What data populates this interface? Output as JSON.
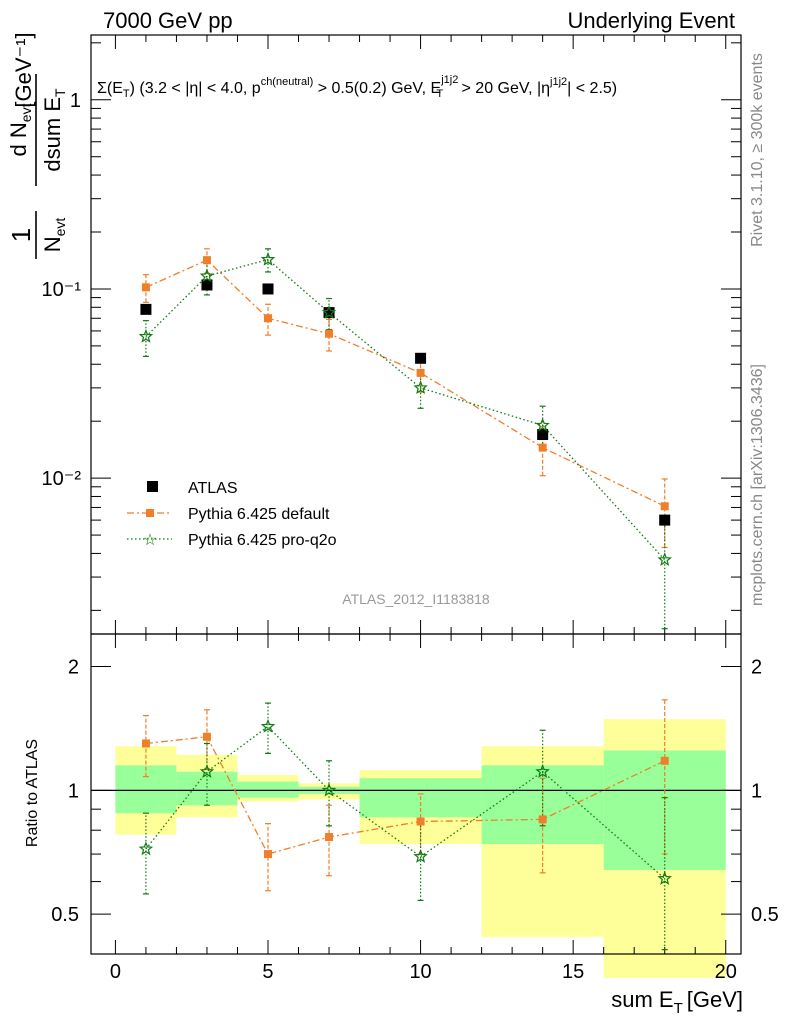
{
  "header": {
    "left": "7000 GeV pp",
    "right": "Underlying Event"
  },
  "side": {
    "rivet": "Rivet 3.1.10, ≥ 300k events",
    "mcplots": "mcplots.cern.ch [arXiv:1306.3436]"
  },
  "watermark": "ATLAS_2012_I1183818",
  "ylabel_unit": "[GeV⁻¹]",
  "ratio_ylabel": "Ratio to ATLAS",
  "xlabel": "sum E",
  "xlabel_sub": "T",
  "xlabel_unit": "[GeV]",
  "annotation": {
    "p1": "Σ(E",
    "p2": "T",
    "p3": ") (3.2 < |η| < 4.0, p",
    "p4": "ch(neutral)",
    "p5": " > 0.5(0.2) GeV, E",
    "p6": "j1j2",
    "p7": "T",
    "p8": " > 20 GeV, |η",
    "p9": "j1j2",
    "p10": "| < 2.5)"
  },
  "legend": {
    "atlas": "ATLAS",
    "default": "Pythia 6.425 default",
    "proq2o": "Pythia 6.425 pro-q2o"
  },
  "colors": {
    "atlas": "#000000",
    "default": "#f07f2b",
    "proq2o": "#117a11",
    "band_outer": "#ffff99",
    "band_inner": "#99ff99"
  },
  "chart_data": {
    "type": "scatter",
    "title": "Underlying Event",
    "xlabel": "sum E_T [GeV]",
    "ylabel": "1/N_evt dN_evt/dsum E_T [GeV^-1]",
    "xlim": [
      -0.8,
      20.5
    ],
    "ylim": [
      0.0015,
      2.2
    ],
    "yscale": "log",
    "ratio_ylim": [
      0.4,
      2.4
    ],
    "x_ticks": [
      0,
      5,
      10,
      15,
      20
    ],
    "x_tick_labels": [
      "0",
      "5",
      "10",
      "15",
      "20"
    ],
    "y_ticks": [
      0.01,
      0.1,
      1
    ],
    "y_tick_labels": [
      "10⁻²",
      "10⁻¹",
      "1"
    ],
    "ratio_ticks": [
      0.5,
      1,
      2
    ],
    "ratio_tick_labels": [
      "0.5",
      "1",
      "2"
    ],
    "bins": [
      [
        0,
        2
      ],
      [
        2,
        4
      ],
      [
        4,
        6
      ],
      [
        6,
        8
      ],
      [
        8,
        12
      ],
      [
        12,
        16
      ],
      [
        16,
        20
      ]
    ],
    "x": [
      1,
      3,
      5,
      7,
      10,
      14,
      18
    ],
    "series": [
      {
        "name": "ATLAS",
        "values": [
          0.078,
          0.105,
          0.1,
          0.075,
          0.043,
          0.017,
          0.006
        ]
      },
      {
        "name": "Pythia 6.425 default",
        "values": [
          0.102,
          0.142,
          0.07,
          0.058,
          0.036,
          0.0145,
          0.0071
        ],
        "err": [
          0.017,
          0.021,
          0.013,
          0.011,
          0.0075,
          0.0042,
          0.0028
        ]
      },
      {
        "name": "Pythia 6.425 pro-q2o",
        "values": [
          0.056,
          0.117,
          0.143,
          0.075,
          0.03,
          0.019,
          0.0037
        ],
        "err": [
          0.012,
          0.024,
          0.02,
          0.014,
          0.0066,
          0.005,
          0.0022
        ]
      }
    ],
    "ratio": {
      "default": [
        1.3,
        1.35,
        0.7,
        0.77,
        0.84,
        0.85,
        1.18
      ],
      "default_err": [
        0.22,
        0.22,
        0.13,
        0.15,
        0.14,
        0.22,
        0.48
      ],
      "proq2o": [
        0.72,
        1.11,
        1.43,
        1.0,
        0.69,
        1.11,
        0.61
      ],
      "proq2o_err": [
        0.16,
        0.19,
        0.2,
        0.18,
        0.15,
        0.29,
        0.35
      ],
      "band_inner": [
        [
          0.88,
          1.15
        ],
        [
          0.92,
          1.11
        ],
        [
          0.96,
          1.05
        ],
        [
          0.98,
          1.02
        ],
        [
          0.86,
          1.07
        ],
        [
          0.74,
          1.15
        ],
        [
          0.64,
          1.25
        ]
      ],
      "band_outer": [
        [
          0.78,
          1.28
        ],
        [
          0.86,
          1.22
        ],
        [
          0.94,
          1.09
        ],
        [
          0.95,
          1.04
        ],
        [
          0.74,
          1.12
        ],
        [
          0.44,
          1.28
        ],
        [
          0.35,
          1.49
        ]
      ]
    }
  }
}
